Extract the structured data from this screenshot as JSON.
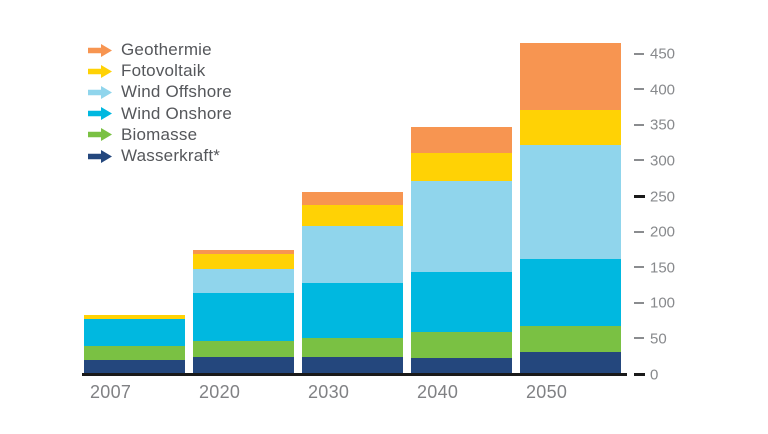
{
  "chart_data": {
    "type": "bar",
    "stacked": true,
    "title": "",
    "xlabel": "",
    "ylabel": "",
    "categories": [
      "2007",
      "2020",
      "2030",
      "2040",
      "2050"
    ],
    "series": [
      {
        "name": "Geothermie",
        "color": "#F79551",
        "values": [
          0,
          6,
          18,
          36,
          94
        ]
      },
      {
        "name": "Fotovoltaik",
        "color": "#FFD205",
        "values": [
          6,
          20,
          30,
          40,
          49
        ]
      },
      {
        "name": "Wind Offshore",
        "color": "#90D5EC",
        "values": [
          0,
          34,
          80,
          128,
          161
        ]
      },
      {
        "name": "Wind Onshore",
        "color": "#00B8E0",
        "values": [
          38,
          68,
          78,
          84,
          93
        ]
      },
      {
        "name": "Biomasse",
        "color": "#7AC143",
        "values": [
          20,
          22,
          26,
          36,
          37
        ]
      },
      {
        "name": "Wasserkraft*",
        "color": "#24477D",
        "values": [
          19,
          24,
          24,
          23,
          31
        ]
      }
    ],
    "stack_order_bottom_to_top": [
      "Wasserkraft*",
      "Biomasse",
      "Wind Onshore",
      "Wind Offshore",
      "Fotovoltaik",
      "Geothermie"
    ],
    "stack_totals": [
      83,
      174,
      256,
      347,
      465
    ],
    "y_axis": {
      "position": "right",
      "min": 0,
      "max": 450,
      "step": 50,
      "tick_labels": [
        "0",
        "50",
        "100",
        "150",
        "200",
        "250",
        "300",
        "350",
        "400",
        "450"
      ],
      "bold_ticks": [
        0,
        250
      ]
    },
    "legend_position": "top-left",
    "legend_icon": "arrow-right-icon",
    "grid": false,
    "colors": {
      "background": "#FFFFFF",
      "axis_line": "#1A1A1A",
      "tick_dash": "#8A8C8F",
      "tick_dash_bold": "#1A1A1A",
      "tick_label_text": "#87898C",
      "category_label_text": "#808184",
      "legend_text": "#55575B"
    }
  }
}
